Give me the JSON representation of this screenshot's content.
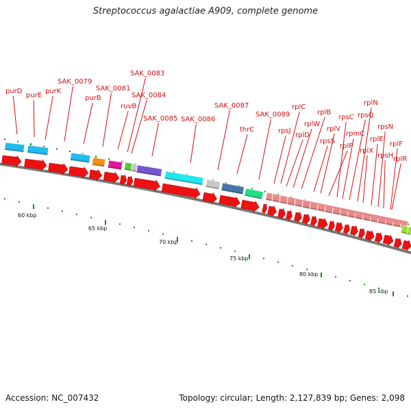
{
  "title": "Streptococcus agalactiae A909, complete genome",
  "footer": {
    "accession": "Accession: NC_007432",
    "summary": "Topology: circular; Length: 2,127,839 bp; Genes: 2,098"
  },
  "colors": {
    "cds_arrow": "#ee1111",
    "label_text": "#cc1111",
    "tick": "#118811",
    "backbone": "#777777",
    "rna_pink": "#e88a8a",
    "cog_cyan": "#22bbee",
    "cog_orange": "#f09018",
    "cog_magenta": "#e0189a",
    "cog_green": "#55cc33",
    "cog_purple": "#7755cc",
    "cog_aqua": "#22e6ee",
    "cog_grey": "#c8c8c8",
    "cog_steel": "#4477aa",
    "cog_mint": "#22dd88",
    "cog_lime": "#99dd33"
  },
  "kbp_labels": [
    "60 kbp",
    "65 kbp",
    "70 kbp",
    "75 kbp",
    "80 kbp",
    "85 kbp"
  ],
  "gene_labels": [
    "purD",
    "purE",
    "purK",
    "SAK_0079",
    "purB",
    "SAK_0081",
    "ruvB",
    "SAK_0083",
    "SAK_0084",
    "SAK_0085",
    "SAK_0086",
    "SAK_0087",
    "thrC",
    "SAK_0089",
    "rpsJ",
    "rplC",
    "rplD",
    "rplW",
    "rplB",
    "rpsS",
    "rplV",
    "rplP",
    "rpsC",
    "rpmC",
    "rpsQ",
    "rplN",
    "rplX",
    "rplE",
    "rpsN",
    "rpsH",
    "rplF",
    "rplR"
  ]
}
